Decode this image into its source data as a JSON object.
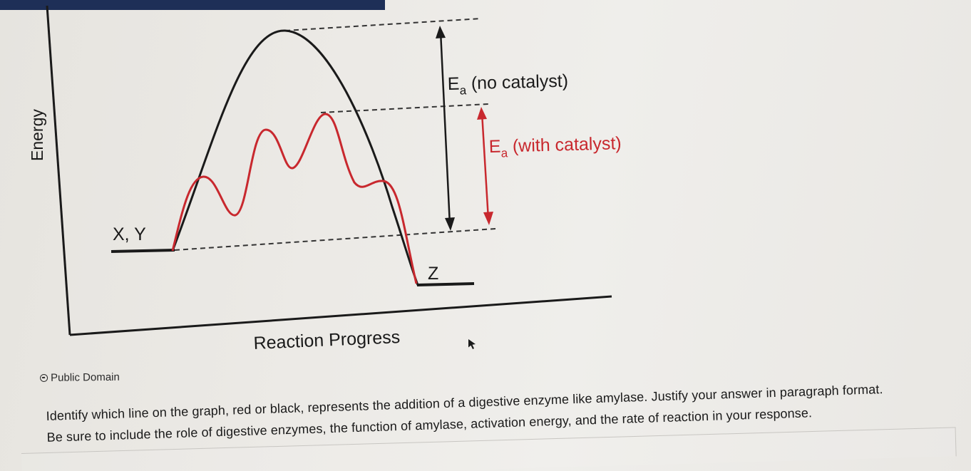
{
  "diagram": {
    "y_axis_label": "Energy",
    "x_axis_label": "Reaction Progress",
    "reactants_label": "X, Y",
    "product_label": "Z",
    "ea_no_catalyst_main": "E",
    "ea_no_catalyst_sub": "a",
    "ea_no_catalyst_rest": " (no catalyst)",
    "ea_with_catalyst_main": "E",
    "ea_with_catalyst_sub": "a",
    "ea_with_catalyst_rest": " (with catalyst)",
    "colors": {
      "no_catalyst_curve": "#1a1a1a",
      "with_catalyst_curve": "#c8282e",
      "axis": "#1a1a1a"
    }
  },
  "credit": {
    "text": "Public Domain",
    "icon": "public-domain-icon"
  },
  "question": {
    "line1": "Identify which line on the graph, red or black, represents the addition of a digestive enzyme like amylase. Justify your answer in paragraph format.",
    "line2": "Be sure to include the role of digestive enzymes, the function of amylase, activation energy, and the rate of reaction in your response."
  },
  "answer_field": {
    "value": ""
  },
  "cursor": {
    "icon": "mouse-pointer-icon"
  }
}
